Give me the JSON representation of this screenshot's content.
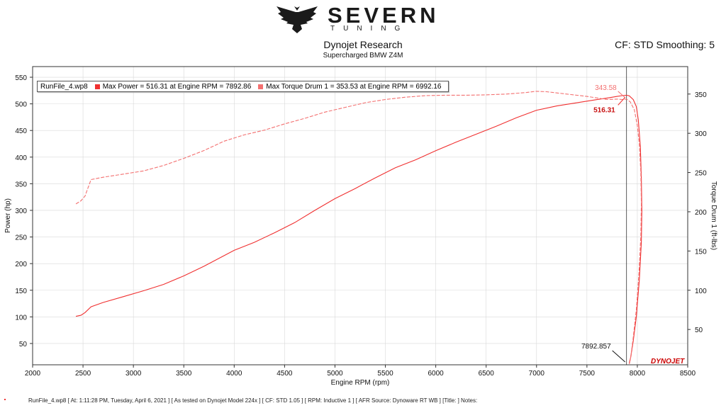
{
  "brand": {
    "name": "SEVERN",
    "tagline": "TUNING"
  },
  "title": "Dynojet Research",
  "subtitle": "Supercharged BMW Z4M",
  "cf_info": "CF: STD Smoothing: 5",
  "legend": {
    "run_file": "RunFile_4.wp8",
    "max_power_text": "Max Power = 516.31 at Engine RPM = 7892.86",
    "max_torque_text": "Max Torque Drum 1 = 353.53 at Engine RPM = 6992.16"
  },
  "footer": "RunFile_4.wp8 [ At: 1:11:28 PM, Tuesday, April 6, 2021 ] [ As tested on Dynojet Model 224x ] [ CF: STD 1.05 ] [ RPM: Inductive 1 ] [ AFR Source: Dynoware RT WB ] [Title: ]  Notes:",
  "dyno_logo": "DYNOJET",
  "colors": {
    "power": "#f03030",
    "torque": "#f37070",
    "axis": "#333333",
    "grid": "#d8d8d8"
  },
  "chart_data": {
    "type": "line",
    "xlabel": "Engine RPM (rpm)",
    "ylabel": "Power (hp)",
    "y2label": "Torque Drum 1 (ft-lbs)",
    "xlim": [
      2000,
      8500
    ],
    "ylim": [
      10,
      570
    ],
    "y2lim": [
      5,
      385
    ],
    "x_ticks": [
      2000,
      2500,
      3000,
      3500,
      4000,
      4500,
      5000,
      5500,
      6000,
      6500,
      7000,
      7500,
      8000,
      8500
    ],
    "y_ticks": [
      50,
      100,
      150,
      200,
      250,
      300,
      350,
      400,
      450,
      500,
      550
    ],
    "y2_ticks": [
      50,
      100,
      150,
      200,
      250,
      300,
      350
    ],
    "grid": true,
    "series": [
      {
        "name": "Power",
        "axis": "left",
        "style": "solid",
        "x": [
          2430,
          2480,
          2520,
          2580,
          2700,
          2900,
          3100,
          3300,
          3500,
          3700,
          3900,
          4000,
          4200,
          4400,
          4600,
          4800,
          5000,
          5200,
          5400,
          5600,
          5800,
          6000,
          6200,
          6400,
          6600,
          6800,
          7000,
          7200,
          7400,
          7600,
          7700,
          7800,
          7850,
          7893,
          7920,
          7960,
          7990,
          8010,
          8030,
          8040,
          8045,
          8040,
          8020,
          7990,
          7960,
          7935,
          7920
        ],
        "y": [
          101,
          103,
          108,
          119,
          127,
          138,
          149,
          161,
          177,
          195,
          215,
          225,
          240,
          258,
          277,
          300,
          322,
          341,
          361,
          380,
          395,
          412,
          428,
          443,
          458,
          474,
          488,
          496,
          502,
          508,
          511,
          514,
          515.5,
          516.31,
          515,
          508,
          495,
          470,
          420,
          360,
          300,
          240,
          170,
          100,
          55,
          25,
          12
        ]
      },
      {
        "name": "Torque Drum 1",
        "axis": "right",
        "style": "dashed",
        "x": [
          2430,
          2480,
          2520,
          2580,
          2700,
          2900,
          3100,
          3300,
          3500,
          3700,
          3900,
          4100,
          4300,
          4500,
          4700,
          4900,
          5100,
          5300,
          5500,
          5700,
          5900,
          6100,
          6300,
          6500,
          6700,
          6900,
          6992,
          7100,
          7300,
          7500,
          7700,
          7800,
          7850,
          7893,
          7930,
          7970,
          8000,
          8020,
          8035,
          8040,
          8035,
          8015,
          7990,
          7960,
          7935,
          7920
        ],
        "y": [
          210,
          214,
          220,
          241,
          244,
          248,
          252,
          259,
          268,
          278,
          290,
          298,
          304,
          312,
          319,
          327,
          333,
          339,
          343,
          346,
          348,
          348.5,
          348.5,
          349,
          350,
          352,
          353.53,
          353,
          350,
          347,
          343,
          343.58,
          343,
          343.58,
          340,
          330,
          310,
          285,
          250,
          210,
          170,
          120,
          75,
          40,
          15,
          8
        ]
      }
    ],
    "annotations": [
      {
        "text": "343.58",
        "x": 7893,
        "y": 343.58,
        "axis": "right"
      },
      {
        "text": "516.31",
        "x": 7893,
        "y": 516.31,
        "axis": "left"
      },
      {
        "text": "7892.857",
        "x": 7892.857,
        "axis": "x"
      }
    ]
  }
}
